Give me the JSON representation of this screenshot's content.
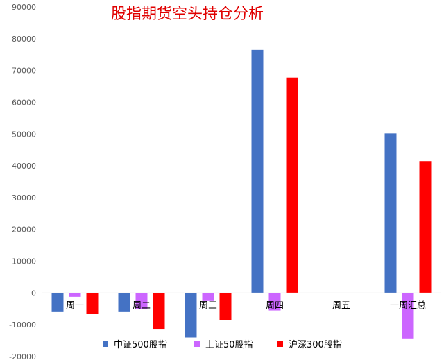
{
  "chart_data": {
    "type": "bar",
    "title": "股指期货空头持仓分析",
    "categories": [
      "周一",
      "周二",
      "周三",
      "周四",
      "周五",
      "一周汇总"
    ],
    "series": [
      {
        "name": "中证500股指",
        "color": "#4472C4",
        "values": [
          -6000,
          -6000,
          -14000,
          76500,
          0,
          50200
        ]
      },
      {
        "name": "上证50股指",
        "color": "#CC66FF",
        "values": [
          -1200,
          -5000,
          -2500,
          -5500,
          0,
          -14500
        ]
      },
      {
        "name": "沪深300股指",
        "color": "#FF0000",
        "values": [
          -6500,
          -11500,
          -8500,
          67800,
          0,
          41500
        ]
      }
    ],
    "yticks": [
      "90000",
      "80000",
      "70000",
      "60000",
      "50000",
      "40000",
      "30000",
      "20000",
      "10000",
      "0",
      "-10000",
      "-20000"
    ],
    "ylim": [
      -20000,
      90000
    ],
    "grid": false,
    "legend_position": "bottom",
    "xlabel": "",
    "ylabel": ""
  }
}
